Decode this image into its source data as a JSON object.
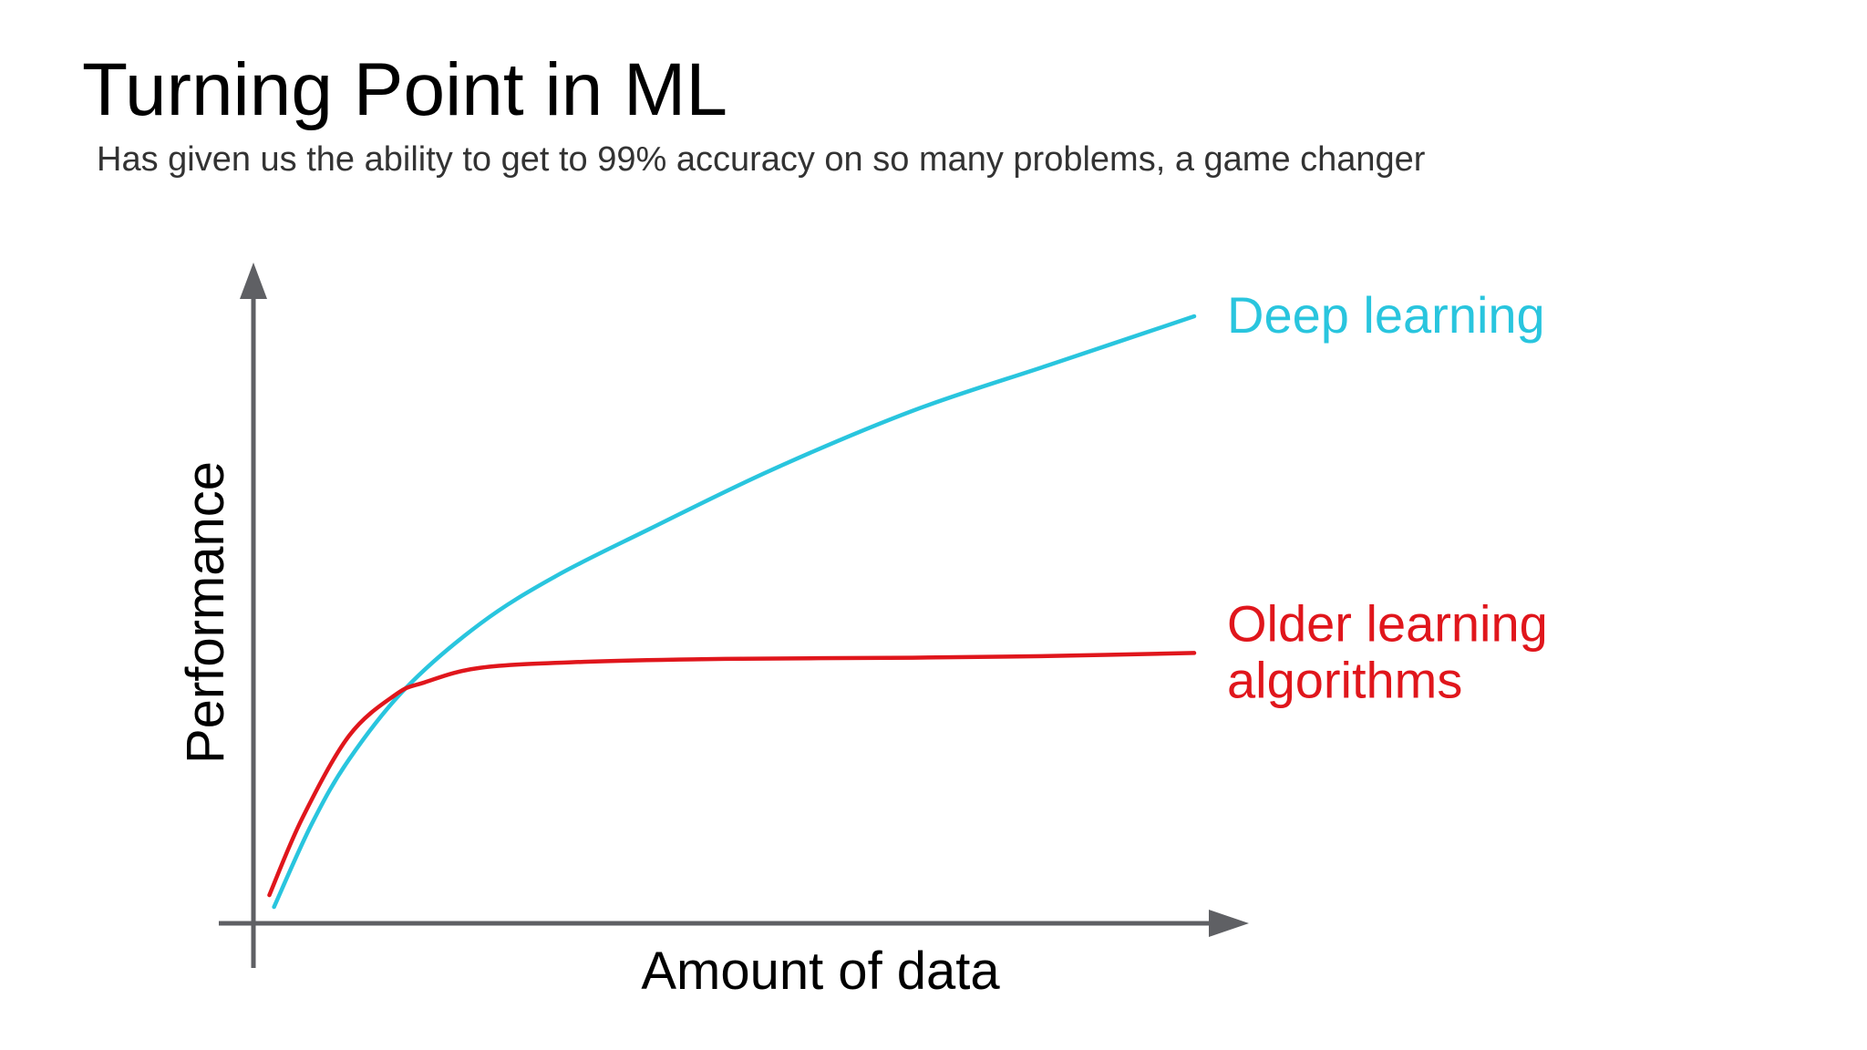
{
  "slide": {
    "title": "Turning Point in ML",
    "subtitle": "Has given us the ability to get to 99% accuracy on so many problems, a game changer"
  },
  "chart_data": {
    "type": "line",
    "xlabel": "Amount of data",
    "ylabel": "Performance",
    "xlim": [
      0,
      100
    ],
    "ylim": [
      0,
      100
    ],
    "grid": false,
    "legend": "inline-right",
    "axis_color": "#5f6064",
    "series": [
      {
        "name": "Deep learning",
        "label_lines": [
          "Deep learning"
        ],
        "color": "#29c5de",
        "x": [
          2,
          6,
          10,
          16,
          24,
          32,
          42,
          55,
          70,
          85,
          100
        ],
        "y": [
          2,
          16,
          27,
          39,
          50,
          58,
          66,
          76,
          86,
          94,
          102
        ]
      },
      {
        "name": "Older learning algorithms",
        "label_lines": [
          "Older learning",
          "algorithms"
        ],
        "color": "#e0161c",
        "x": [
          1.5,
          5,
          10,
          15,
          18,
          24,
          35,
          50,
          70,
          85,
          100
        ],
        "y": [
          4,
          17,
          31,
          38,
          40,
          42.5,
          43.5,
          44,
          44.2,
          44.5,
          45
        ]
      }
    ]
  }
}
